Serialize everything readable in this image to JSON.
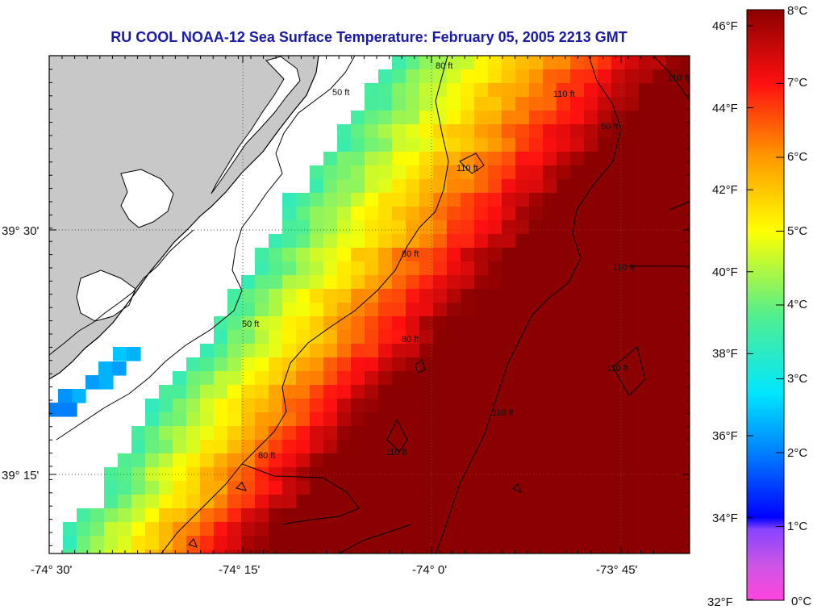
{
  "title": "RU COOL  NOAA-12  Sea Surface Temperature:  February 05, 2005 2213 GMT",
  "map": {
    "lat_labels": [
      "39° 30'",
      "39° 15'"
    ],
    "lon_labels": [
      "-74° 30'",
      "-74° 15'",
      "-74° 0'",
      "-73° 45'"
    ],
    "contour_labels": {
      "c50_a": "50 ft",
      "c50_b": "50 ft",
      "c50_c": "50 ft",
      "c80_a": "80 ft",
      "c80_b": "80 ft",
      "c80_c": "80 ft",
      "c80_d": "80 ft",
      "c110_a": "110 ft",
      "c110_b": "110 ft",
      "c110_c": "110 ft",
      "c110_d": "110 ft",
      "c110_e": "110 ft",
      "c110_f": "110 ft",
      "c110_g": "110 ft"
    },
    "colors": {
      "land": "#c8c8c8",
      "nodata": "#ffffff",
      "coast": "#000000"
    }
  },
  "colorbar": {
    "fahrenheit_labels": [
      "46°F",
      "44°F",
      "42°F",
      "40°F",
      "38°F",
      "36°F",
      "34°F",
      "32°F"
    ],
    "celsius_labels": [
      "8°C",
      "7°C",
      "6°C",
      "5°C",
      "4°C",
      "3°C",
      "2°C",
      "1°C",
      "0°C"
    ],
    "range_c": [
      0,
      8
    ]
  }
}
